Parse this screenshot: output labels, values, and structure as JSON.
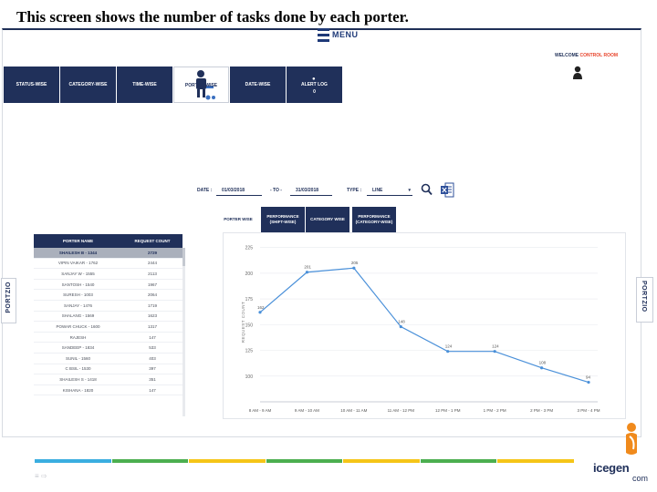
{
  "slide": {
    "title": "This screen shows the number of tasks done by each porter."
  },
  "header": {
    "menu_label": "MENU",
    "welcome_text": "WELCOME",
    "welcome_user": "CONTROL ROOM"
  },
  "nav": {
    "tabs": [
      {
        "label": "STATUS-WISE"
      },
      {
        "label": "CATEGORY-WISE"
      },
      {
        "label": "TIME-WISE"
      },
      {
        "label": "PORTER-WISE",
        "active": true
      },
      {
        "label": "DATE-WISE"
      },
      {
        "label": "ALERT LOG"
      }
    ],
    "alert_sub": "0"
  },
  "filters": {
    "date_label": "DATE :",
    "from_value": "01/03/2018",
    "to_label": "- TO -",
    "to_value": "31/03/2018",
    "type_label": "TYPE :",
    "type_value": "LINE",
    "caret": "▾"
  },
  "sub_tabs": [
    {
      "label": "PORTER WISE"
    },
    {
      "label": "PERFORMANCE (SHIFT-WISE)"
    },
    {
      "label": "CATEGORY WISE"
    },
    {
      "label": "PERFORMANCE (CATEGORY-WISE)"
    }
  ],
  "porter_table": {
    "headers": [
      "PORTER NAME",
      "REQUEST COUNT"
    ],
    "rows": [
      [
        "SHAILESH B - 1344",
        "2729"
      ],
      [
        "VIPIN VAIKAR - 1762",
        "2444"
      ],
      [
        "SANJAY W - 1555",
        "2113"
      ],
      [
        "SANTOSH - 1540",
        "1967"
      ],
      [
        "SURESH - 1003",
        "2064"
      ],
      [
        "SANJAY - 1476",
        "1719"
      ],
      [
        "SHALANG - 1569",
        "1623"
      ],
      [
        "POWAR CHUCK - 1600",
        "1317"
      ],
      [
        "RAJESH",
        "147"
      ],
      [
        "SANDEEP - 1834",
        "533"
      ],
      [
        "SUNIL - 1560",
        "403"
      ],
      [
        "C BSIL - 1530",
        "397"
      ],
      [
        "SHAILESH S - 1418",
        "351"
      ],
      [
        "KISHANA - 1820",
        "147"
      ]
    ]
  },
  "chart_data": {
    "type": "line",
    "categories": [
      "8 AM - 9 AM",
      "9 AM - 10 AM",
      "10 AM - 11 AM",
      "11 AM - 12 PM",
      "12 PM - 1 PM",
      "1 PM - 2 PM",
      "2 PM - 3 PM",
      "3 PM - 4 PM"
    ],
    "values": [
      162,
      201,
      205,
      148,
      124,
      124,
      108,
      94
    ],
    "point_labels": [
      "162",
      "201",
      "205",
      "148",
      "124",
      "124",
      "108",
      "94"
    ],
    "ytick_labels": [
      "100",
      "125",
      "150",
      "175",
      "200",
      "225"
    ],
    "ylim": [
      75,
      230
    ],
    "ylabel": "REQUEST COUNT",
    "grid": true,
    "line_color": "#4a90d9"
  },
  "footer": {
    "stripe_colors": [
      "#3aaee0",
      "#4caf50",
      "#f5c518",
      "#4caf50",
      "#f5c518",
      "#4caf50",
      "#f5c518"
    ],
    "nav_arrows": "≡ ⇨",
    "brand_name": "icegen",
    "brand_com": "com"
  },
  "side_logo": {
    "text": "PORTZIO"
  },
  "colors": {
    "navy": "#20305a",
    "accent": "#e8442b"
  }
}
